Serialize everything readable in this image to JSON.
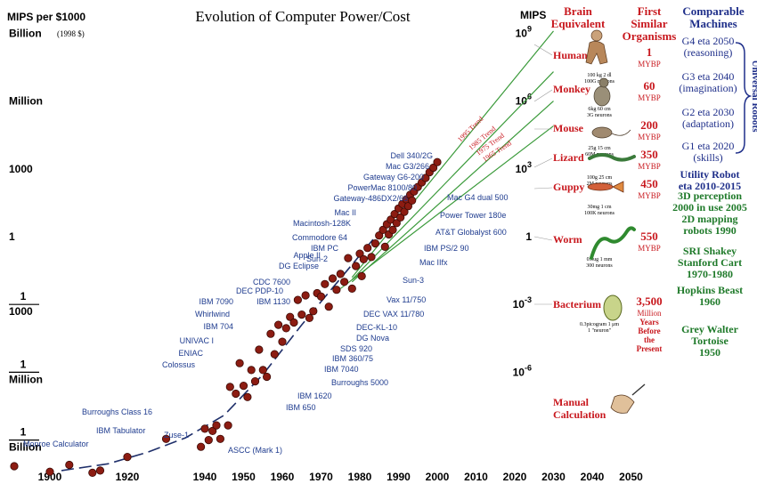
{
  "chart_data": {
    "type": "scatter",
    "title": "Evolution of Computer Power/Cost",
    "left_axis": {
      "label": "MIPS per $1000",
      "sublabel": "(1998 $)",
      "ticks": [
        {
          "exp": 9,
          "label": "Billion"
        },
        {
          "exp": 6,
          "label": "Million"
        },
        {
          "exp": 3,
          "label": "1000"
        },
        {
          "exp": 0,
          "label": "1"
        },
        {
          "exp": -3,
          "label_num": "1",
          "label_den": "1000"
        },
        {
          "exp": -6,
          "label_num": "1",
          "label_den": "Million"
        },
        {
          "exp": -9,
          "label_num": "1",
          "label_den": "Billion"
        }
      ]
    },
    "right_axis": {
      "label": "MIPS",
      "ticks": [
        {
          "exp": 9,
          "label": "10",
          "sup": "9"
        },
        {
          "exp": 6,
          "label": "10",
          "sup": "6"
        },
        {
          "exp": 3,
          "label": "10",
          "sup": "3"
        },
        {
          "exp": 0,
          "label": "1",
          "sup": ""
        },
        {
          "exp": -3,
          "label": "10",
          "sup": "-3"
        },
        {
          "exp": -6,
          "label": "10",
          "sup": "-6"
        }
      ]
    },
    "x_ticks": [
      1900,
      1920,
      1940,
      1950,
      1960,
      1970,
      1980,
      1990,
      2000,
      2010,
      2020,
      2030,
      2040,
      2050
    ],
    "points": [
      {
        "x": 1900,
        "exp": -10.4
      },
      {
        "x": 1905,
        "exp": -10.1
      },
      {
        "x": 1911,
        "exp": -10.45
      },
      {
        "x": 1913,
        "exp": -10.35
      },
      {
        "x": 1920,
        "exp": -9.75
      },
      {
        "x": 1930,
        "exp": -8.95
      },
      {
        "x": 1939,
        "exp": -9.3
      },
      {
        "x": 1940,
        "exp": -8.5
      },
      {
        "x": 1941,
        "exp": -9.0
      },
      {
        "x": 1942,
        "exp": -8.6
      },
      {
        "x": 1943,
        "exp": -8.35
      },
      {
        "x": 1944,
        "exp": -8.95
      },
      {
        "x": 1946,
        "exp": -8.35
      },
      {
        "x": 1946.5,
        "exp": -6.65
      },
      {
        "x": 1948,
        "exp": -6.95
      },
      {
        "x": 1949,
        "exp": -5.6
      },
      {
        "x": 1950,
        "exp": -6.6
      },
      {
        "x": 1951,
        "exp": -7.1
      },
      {
        "x": 1952,
        "exp": -5.9
      },
      {
        "x": 1953,
        "exp": -6.4
      },
      {
        "x": 1954,
        "exp": -5.0
      },
      {
        "x": 1955,
        "exp": -5.9
      },
      {
        "x": 1956,
        "exp": -6.2
      },
      {
        "x": 1957,
        "exp": -4.3
      },
      {
        "x": 1958,
        "exp": -5.2
      },
      {
        "x": 1959,
        "exp": -3.9
      },
      {
        "x": 1960,
        "exp": -4.65
      },
      {
        "x": 1961,
        "exp": -4.05
      },
      {
        "x": 1962,
        "exp": -3.55
      },
      {
        "x": 1963,
        "exp": -3.8
      },
      {
        "x": 1964,
        "exp": -2.8
      },
      {
        "x": 1965,
        "exp": -3.45
      },
      {
        "x": 1966,
        "exp": -2.6
      },
      {
        "x": 1967,
        "exp": -3.6
      },
      {
        "x": 1968,
        "exp": -3.3
      },
      {
        "x": 1969,
        "exp": -2.5
      },
      {
        "x": 1970,
        "exp": -2.65
      },
      {
        "x": 1971,
        "exp": -2.1
      },
      {
        "x": 1972,
        "exp": -3.1
      },
      {
        "x": 1973,
        "exp": -1.85
      },
      {
        "x": 1974,
        "exp": -2.35
      },
      {
        "x": 1975,
        "exp": -1.65
      },
      {
        "x": 1976,
        "exp": -2.0
      },
      {
        "x": 1977,
        "exp": -0.95
      },
      {
        "x": 1978,
        "exp": -2.3
      },
      {
        "x": 1979,
        "exp": -1.3
      },
      {
        "x": 1980,
        "exp": -0.75
      },
      {
        "x": 1980.5,
        "exp": -1.75
      },
      {
        "x": 1981,
        "exp": -1.0
      },
      {
        "x": 1982,
        "exp": -0.5
      },
      {
        "x": 1983,
        "exp": -0.9
      },
      {
        "x": 1984,
        "exp": -0.3
      },
      {
        "x": 1985,
        "exp": 0.05
      },
      {
        "x": 1986,
        "exp": 0.3
      },
      {
        "x": 1986.5,
        "exp": -0.45
      },
      {
        "x": 1987,
        "exp": 0.55
      },
      {
        "x": 1987.5,
        "exp": 0.1
      },
      {
        "x": 1988,
        "exp": 0.75
      },
      {
        "x": 1988.5,
        "exp": 0.3
      },
      {
        "x": 1989,
        "exp": 1.0
      },
      {
        "x": 1989.5,
        "exp": 0.6
      },
      {
        "x": 1990,
        "exp": 1.25
      },
      {
        "x": 1990.5,
        "exp": 0.85
      },
      {
        "x": 1991,
        "exp": 1.45
      },
      {
        "x": 1991.5,
        "exp": 1.1
      },
      {
        "x": 1992,
        "exp": 1.65
      },
      {
        "x": 1992.5,
        "exp": 1.35
      },
      {
        "x": 1993,
        "exp": 1.85
      },
      {
        "x": 1993.5,
        "exp": 1.6
      },
      {
        "x": 1994,
        "exp": 2.0
      },
      {
        "x": 1995,
        "exp": 2.2
      },
      {
        "x": 1996,
        "exp": 2.4
      },
      {
        "x": 1997,
        "exp": 2.6
      },
      {
        "x": 1998,
        "exp": 2.85
      },
      {
        "x": 1999,
        "exp": 3.05
      },
      {
        "x": 2000,
        "exp": 3.3
      }
    ],
    "machine_labels": [
      "Dell 340/2G",
      "Mac G3/266",
      "Gateway G6-200",
      "PowerMac 8100/80",
      "Gateway-486DX2/66",
      "Mac II",
      "Macintosh-128K",
      "Commodore 64",
      "IBM PC",
      "Apple II",
      "Sun-2",
      "DG Eclipse",
      "CDC 7600",
      "DEC PDP-10",
      "IBM 1130",
      "IBM 7090",
      "Whirlwind",
      "IBM 704",
      "UNIVAC I",
      "ENIAC",
      "Colossus",
      "Mac G4 dual 500",
      "Power Tower 180e",
      "AT&T Globalyst 600",
      "IBM PS/2 90",
      "Mac IIfx",
      "Sun-3",
      "Vax 11/750",
      "DEC VAX 11/780",
      "DEC-KL-10",
      "DG Nova",
      "SDS 920",
      "IBM 360/75",
      "IBM 7040",
      "Burroughs 5000",
      "IBM 1620",
      "IBM 650",
      "Burroughs Class 16",
      "IBM Tabulator",
      "Monroe Calculator",
      "Zuse-1",
      "ASCC (Mark 1)"
    ],
    "trend_labels": [
      "1995 Trend",
      "1985 Trend",
      "1975 Trend",
      "1965 Trend"
    ],
    "column_headers": {
      "brain_line1": "Brain",
      "brain_line2": "Equivalent",
      "organ_line1": "First",
      "organ_line2": "Similar",
      "organ_line3": "Organisms",
      "machines_line1": "Comparable",
      "machines_line2": "Machines"
    },
    "brains": [
      {
        "name": "Human",
        "mybp": "1",
        "unit": "MYBP",
        "caption1": "100 kg    2 dl",
        "caption2": "100G neurons"
      },
      {
        "name": "Monkey",
        "mybp": "60",
        "unit": "MYBP",
        "caption1": "6kg   60 cm",
        "caption2": "3G neurons"
      },
      {
        "name": "Mouse",
        "mybp": "200",
        "unit": "MYBP",
        "caption1": "25g      15 cm",
        "caption2": "60M neurons"
      },
      {
        "name": "Lizard",
        "mybp": "350",
        "unit": "MYBP",
        "caption1": "100g   25 cm",
        "caption2": "2M neurons"
      },
      {
        "name": "Guppy",
        "mybp": "450",
        "unit": "MYBP",
        "caption1": "30mg     1 cm",
        "caption2": "100K neurons"
      },
      {
        "name": "Worm",
        "mybp": "550",
        "unit": "MYBP",
        "caption1": "0.5ug  1 mm",
        "caption2": "300 neurons"
      },
      {
        "name": "Bacterium",
        "mybp": "3,500",
        "unit": "Million",
        "unit2": "Years",
        "unit3": "Before",
        "unit4": "the",
        "unit5": "Present",
        "caption1": "0.3picogram 1 μm",
        "caption2": "1 \"neuron\""
      },
      {
        "name_line1": "Manual",
        "name_line2": "Calculation"
      }
    ],
    "universal_robots_label": "Universal Robots",
    "universal_robots": [
      {
        "line1": "G4 eta 2050",
        "line2": "(reasoning)"
      },
      {
        "line1": "G3 eta 2040",
        "line2": "(imagination)"
      },
      {
        "line1": "G2 eta 2030",
        "line2": "(adaptation)"
      },
      {
        "line1": "G1 eta 2020",
        "line2": "(skills)"
      }
    ],
    "utility_robot": {
      "line1": "Utility Robot",
      "line2": "eta 2010-2015"
    },
    "machines_green": [
      {
        "line1": "3D perception",
        "line2": "2000 in use 2005"
      },
      {
        "line1": "2D mapping",
        "line2": "robots 1990"
      },
      {
        "line1": "SRI Shakey",
        "line2": "Stanford Cart",
        "line3": "1970-1980"
      },
      {
        "line1": "Hopkins Beast",
        "line2": "1960"
      },
      {
        "line1": "Grey Walter",
        "line2": "Tortoise",
        "line3": "1950"
      }
    ],
    "colors": {
      "axis_text": "#000000",
      "machine_label": "#1f3c8f",
      "dot_fill": "#8c1c12",
      "dot_stroke": "#3b0a05",
      "trend_line": "#3a9a3a",
      "brain_red": "#c8181e",
      "robot_blue": "#1f2f8a",
      "robot_green": "#1f7a2a"
    }
  }
}
